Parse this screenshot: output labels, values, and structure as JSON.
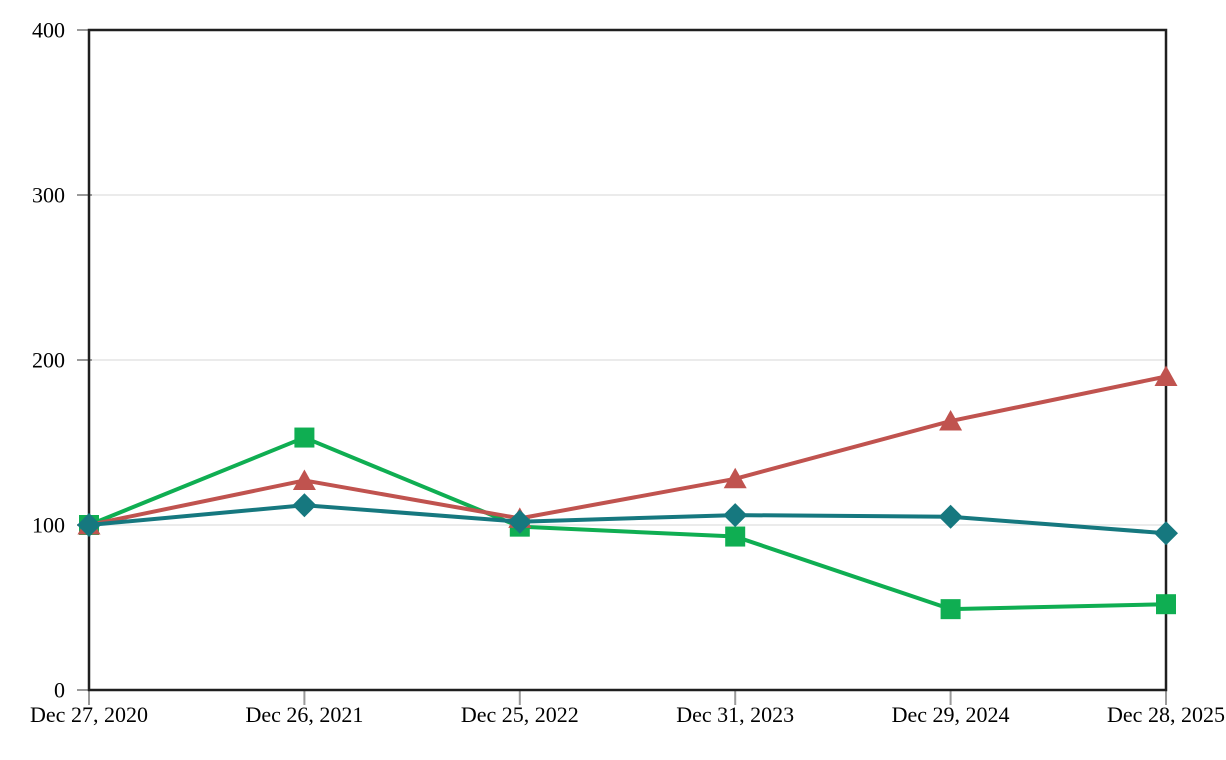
{
  "chart_data": {
    "type": "line",
    "title": "",
    "xlabel": "",
    "ylabel": "",
    "x_categories": [
      "Dec 27, 2020",
      "Dec 26, 2021",
      "Dec 25, 2022",
      "Dec 31, 2023",
      "Dec 29, 2024",
      "Dec 28, 2025"
    ],
    "y_ticks": [
      0,
      100,
      200,
      300,
      400
    ],
    "ylim": [
      0,
      400
    ],
    "grid": "horizontal-gridlines-on",
    "legend_position": "none",
    "plot_border": "full-rectangle",
    "series": [
      {
        "name": "green-square-series",
        "marker": "square",
        "color": "#0fae52",
        "values": [
          100,
          153,
          99,
          93,
          49,
          52
        ]
      },
      {
        "name": "red-triangle-series",
        "marker": "triangle",
        "color": "#c0534f",
        "values": [
          100,
          127,
          104,
          128,
          163,
          190
        ]
      },
      {
        "name": "teal-diamond-series",
        "marker": "diamond",
        "color": "#16787f",
        "values": [
          100,
          112,
          102,
          106,
          105,
          95
        ]
      }
    ],
    "axis_color": "#1f1f1f",
    "gridline_color": "#ebebeb",
    "tick_mark_color": "#9a9a9a",
    "tick_label_color": "#000000"
  }
}
